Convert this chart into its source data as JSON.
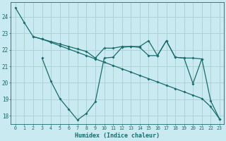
{
  "background_color": "#c8eaf0",
  "grid_color": "#aacfcf",
  "line_color": "#1a6b6b",
  "xlabel": "Humidex (Indice chaleur)",
  "xlim": [
    -0.5,
    23.5
  ],
  "ylim": [
    17.5,
    24.9
  ],
  "yticks": [
    18,
    19,
    20,
    21,
    22,
    23,
    24
  ],
  "xticks": [
    0,
    1,
    2,
    3,
    4,
    5,
    6,
    7,
    8,
    9,
    10,
    11,
    12,
    13,
    14,
    15,
    16,
    17,
    18,
    19,
    20,
    21,
    22,
    23
  ],
  "lineA_x": [
    0,
    1,
    2,
    3,
    4,
    5,
    6,
    7,
    8,
    9,
    10,
    11,
    12,
    13,
    14,
    15,
    16,
    17,
    18,
    19,
    20,
    21,
    22,
    23
  ],
  "lineA_y": [
    24.55,
    23.65,
    22.8,
    22.65,
    22.45,
    22.25,
    22.05,
    21.85,
    21.65,
    21.45,
    21.25,
    21.05,
    20.85,
    20.65,
    20.45,
    20.25,
    20.05,
    19.85,
    19.65,
    19.45,
    19.25,
    19.05,
    18.55,
    17.8
  ],
  "lineB_x": [
    2,
    3,
    4,
    5,
    6,
    7,
    8,
    9,
    10,
    11,
    12,
    13,
    14,
    15,
    16,
    17,
    18,
    19,
    20,
    21
  ],
  "lineB_y": [
    22.8,
    22.65,
    22.5,
    22.35,
    22.2,
    22.05,
    21.9,
    21.5,
    22.1,
    22.1,
    22.2,
    22.2,
    22.2,
    22.55,
    21.65,
    22.55,
    21.55,
    21.5,
    21.5,
    21.45
  ],
  "lineC_x": [
    3,
    4,
    5,
    6,
    7,
    8,
    9,
    10,
    11,
    12,
    13,
    14,
    15,
    16,
    17,
    18,
    19,
    20,
    21,
    22,
    23
  ],
  "lineC_y": [
    21.5,
    20.1,
    19.05,
    18.4,
    17.75,
    18.15,
    18.85,
    21.5,
    21.55,
    22.15,
    22.2,
    22.15,
    21.65,
    21.65,
    22.55,
    21.55,
    21.5,
    19.95,
    21.45,
    18.9,
    17.8
  ]
}
